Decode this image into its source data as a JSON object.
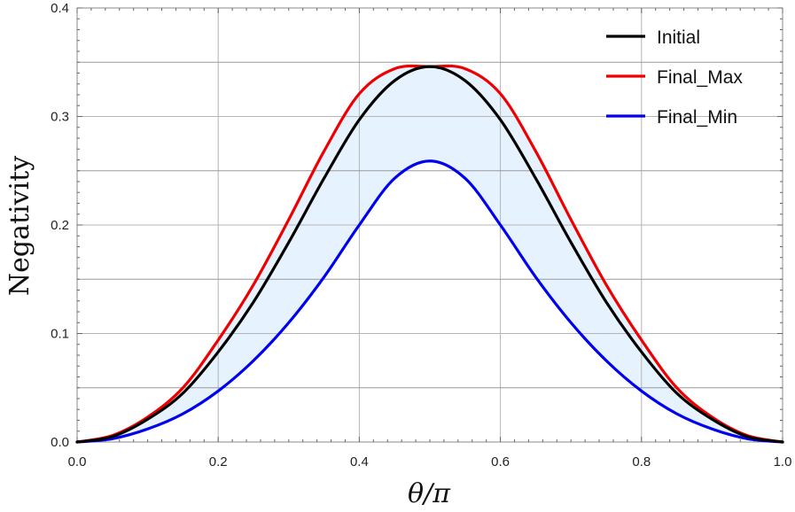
{
  "chart_data": {
    "type": "line",
    "title": "",
    "xlabel": "θ/π",
    "ylabel": "Negativity",
    "xlim": [
      0.0,
      1.0
    ],
    "ylim": [
      0.0,
      0.4
    ],
    "x_ticks": [
      "0.0",
      "0.2",
      "0.4",
      "0.6",
      "0.8",
      "1.0"
    ],
    "y_ticks": [
      "0.0",
      "0.1",
      "0.2",
      "0.3",
      "0.4"
    ],
    "grid": true,
    "legend_position": "top-right",
    "x": [
      0.0,
      0.05,
      0.1,
      0.15,
      0.2,
      0.25,
      0.3,
      0.35,
      0.4,
      0.45,
      0.5,
      0.55,
      0.6,
      0.65,
      0.7,
      0.75,
      0.8,
      0.85,
      0.9,
      0.95,
      1.0
    ],
    "series": [
      {
        "name": "Initial",
        "color": "#000000",
        "values": [
          0.0,
          0.005,
          0.021,
          0.045,
          0.083,
          0.129,
          0.184,
          0.243,
          0.297,
          0.333,
          0.346,
          0.333,
          0.297,
          0.243,
          0.184,
          0.129,
          0.083,
          0.045,
          0.021,
          0.005,
          0.0
        ]
      },
      {
        "name": "Final_Max",
        "color": "#ee0000",
        "values": [
          0.0,
          0.006,
          0.023,
          0.05,
          0.094,
          0.145,
          0.205,
          0.268,
          0.321,
          0.344,
          0.346,
          0.344,
          0.321,
          0.268,
          0.205,
          0.145,
          0.094,
          0.05,
          0.023,
          0.006,
          0.0
        ]
      },
      {
        "name": "Final_Min",
        "color": "#0000ee",
        "values": [
          0.0,
          0.003,
          0.012,
          0.026,
          0.047,
          0.075,
          0.11,
          0.152,
          0.2,
          0.243,
          0.259,
          0.243,
          0.2,
          0.152,
          0.11,
          0.075,
          0.047,
          0.026,
          0.012,
          0.003,
          0.0
        ]
      }
    ],
    "fill_between": {
      "upper": "Final_Max",
      "lower": "Final_Min",
      "color": "#ddeefc"
    }
  }
}
